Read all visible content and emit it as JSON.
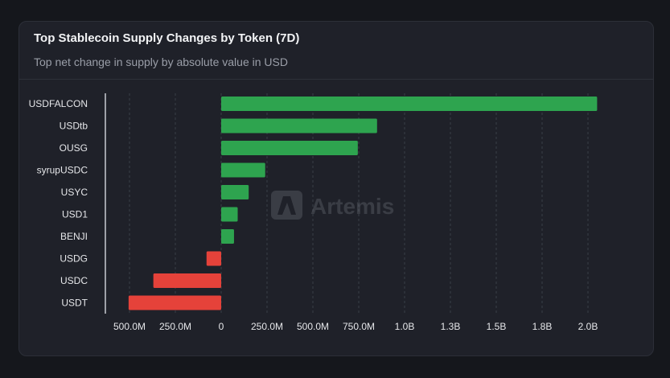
{
  "card": {
    "title": "Top Stablecoin Supply Changes by Token (7D)",
    "subtitle": "Top net change in supply by absolute value in USD"
  },
  "watermark": {
    "text": "Artemis"
  },
  "colors": {
    "positive": "#2ea44f",
    "negative": "#e5423a",
    "background": "#1f2129",
    "grid": "#3a3e47",
    "text": "#e6e7ea"
  },
  "chart_data": {
    "type": "bar",
    "orientation": "horizontal",
    "title": "Top Stablecoin Supply Changes by Token (7D)",
    "subtitle": "Top net change in supply by absolute value in USD",
    "categories": [
      "USDFALCON",
      "USDtb",
      "OUSG",
      "syrupUSDC",
      "USYC",
      "USD1",
      "BENJI",
      "USDG",
      "USDC",
      "USDT"
    ],
    "values": [
      2050000000,
      850000000,
      745000000,
      240000000,
      150000000,
      90000000,
      70000000,
      -80000000,
      -370000000,
      -505000000
    ],
    "x_ticks": [
      -500000000,
      -250000000,
      0,
      250000000,
      500000000,
      750000000,
      1000000000,
      1250000000,
      1500000000,
      1750000000,
      2000000000
    ],
    "x_tick_labels": [
      "500.0M",
      "250.0M",
      "0",
      "250.0M",
      "500.0M",
      "750.0M",
      "1.0B",
      "1.3B",
      "1.5B",
      "1.8B",
      "2.0B"
    ],
    "xlim": [
      -500000000,
      2000000000
    ],
    "grid": true,
    "legend": "none"
  }
}
